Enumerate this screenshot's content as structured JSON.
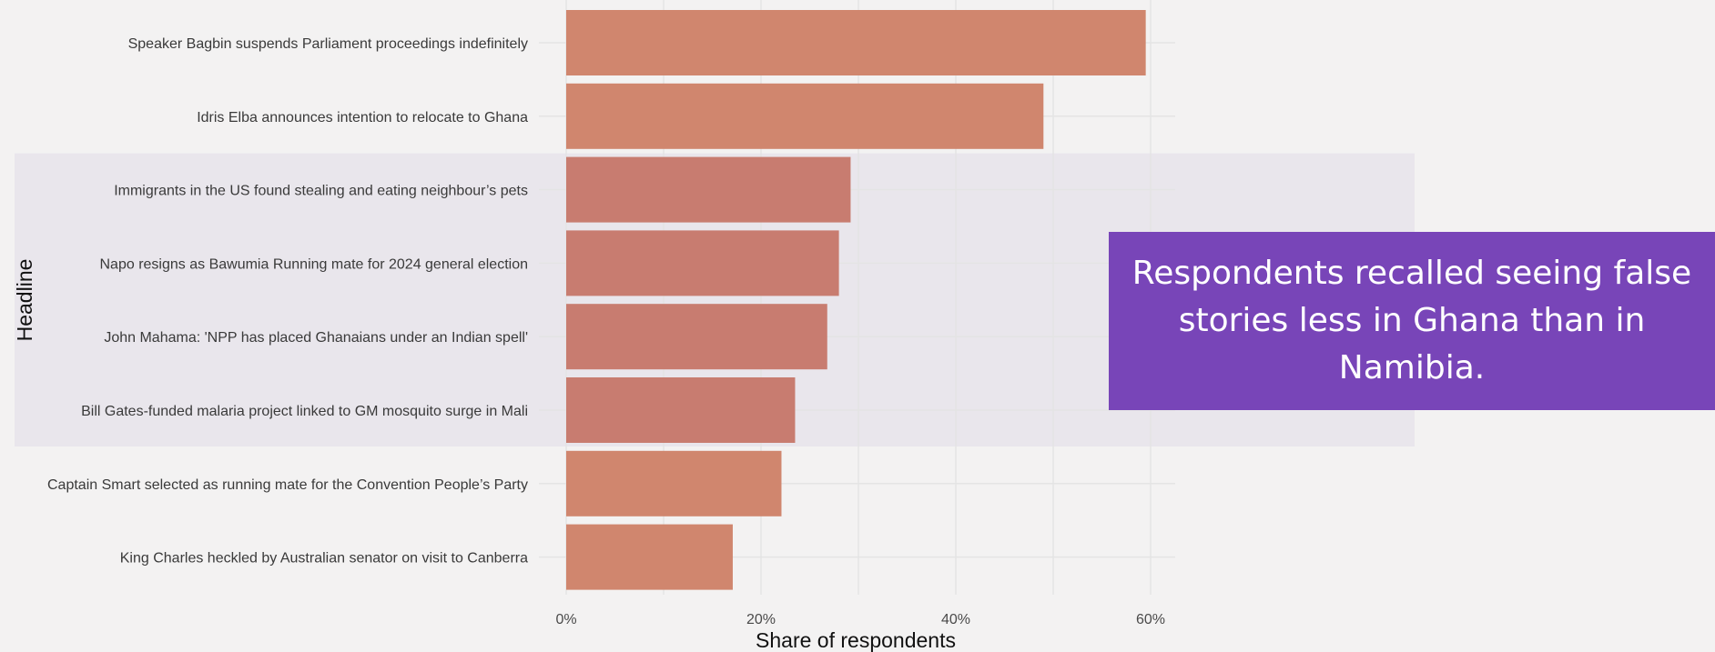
{
  "chart_data": {
    "type": "bar",
    "orientation": "horizontal",
    "xlabel": "Share of respondents",
    "ylabel": "Headline",
    "xlim": [
      0,
      0.62
    ],
    "xticks": [
      0,
      0.2,
      0.4,
      0.6
    ],
    "xtick_labels": [
      "0%",
      "20%",
      "40%",
      "60%"
    ],
    "grid": true,
    "categories": [
      "Speaker Bagbin suspends Parliament proceedings indefinitely",
      "Idris Elba announces intention to relocate to Ghana",
      "Immigrants in the US found stealing and eating neighbour’s pets",
      "Napo resigns as Bawumia Running mate for 2024 general election",
      "John Mahama: 'NPP has placed Ghanaians under an Indian spell'",
      "Bill Gates-funded malaria project linked to GM mosquito surge in Mali",
      "Captain Smart selected as running mate for the Convention People’s Party",
      "King Charles heckled by Australian senator on visit to Canberra"
    ],
    "values": [
      0.595,
      0.49,
      0.292,
      0.28,
      0.268,
      0.235,
      0.221,
      0.171
    ],
    "highlighted": [
      false,
      false,
      true,
      true,
      true,
      true,
      false,
      false
    ],
    "colors": {
      "bar": "#d0866e",
      "bar_highlighted": "#c87c70",
      "highlight_band": "#e9e6ec",
      "grid": "#e4e4e4",
      "background": "#f3f2f2"
    }
  },
  "annotation": {
    "text": "Respondents recalled seeing false stories less in Ghana than in Namibia.",
    "background": "#7845b8"
  }
}
